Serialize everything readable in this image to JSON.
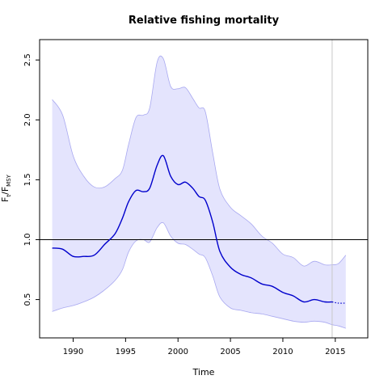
{
  "chart_data": {
    "type": "line",
    "title": "Relative fishing mortality",
    "xlabel": "Time",
    "ylabel": {
      "main": "F",
      "sub1": "t",
      "slash": "/F",
      "sub2": "MSY"
    },
    "xlim": [
      1986.8,
      2018.1
    ],
    "ylim": [
      0.18,
      2.67
    ],
    "xticks": [
      {
        "value": 1990,
        "label": "1990"
      },
      {
        "value": 1995,
        "label": "1995"
      },
      {
        "value": 2000,
        "label": "2000"
      },
      {
        "value": 2005,
        "label": "2005"
      },
      {
        "value": 2010,
        "label": "2010"
      },
      {
        "value": 2015,
        "label": "2015"
      }
    ],
    "yticks": [
      {
        "value": 0.5,
        "label": "0.5"
      },
      {
        "value": 1.0,
        "label": "1.0"
      },
      {
        "value": 1.5,
        "label": "1.5"
      },
      {
        "value": 2.0,
        "label": "2.0"
      },
      {
        "value": 2.5,
        "label": "2.5"
      }
    ],
    "reference_line": 1.0,
    "vertical_line": 2014.7,
    "colors": {
      "line": "#0000cc",
      "band_fill": "#e4e4fd",
      "band_edge": "#a8a8f0",
      "vline": "#c8c8c8",
      "ref": "#000000"
    },
    "series": {
      "x": [
        1988.0,
        1989.0,
        1990.0,
        1991.0,
        1992.0,
        1993.0,
        1994.0,
        1994.7,
        1995.3,
        1996.0,
        1996.7,
        1997.3,
        1998.0,
        1998.6,
        1999.3,
        2000.0,
        2000.7,
        2001.4,
        2002.0,
        2002.6,
        2003.3,
        2004.0,
        2005.0,
        2006.0,
        2007.0,
        2008.0,
        2009.0,
        2010.0,
        2011.0,
        2012.0,
        2013.0,
        2014.0,
        2014.7
      ],
      "median": [
        0.93,
        0.92,
        0.86,
        0.86,
        0.87,
        0.96,
        1.05,
        1.18,
        1.32,
        1.41,
        1.4,
        1.43,
        1.62,
        1.7,
        1.53,
        1.46,
        1.48,
        1.43,
        1.36,
        1.33,
        1.15,
        0.9,
        0.77,
        0.71,
        0.68,
        0.63,
        0.61,
        0.56,
        0.53,
        0.48,
        0.5,
        0.48,
        0.48
      ],
      "lower": [
        0.4,
        0.43,
        0.45,
        0.48,
        0.52,
        0.58,
        0.66,
        0.75,
        0.9,
        0.99,
        1.0,
        0.98,
        1.1,
        1.14,
        1.03,
        0.97,
        0.96,
        0.92,
        0.88,
        0.85,
        0.7,
        0.52,
        0.43,
        0.41,
        0.39,
        0.38,
        0.36,
        0.34,
        0.32,
        0.31,
        0.32,
        0.31,
        0.29
      ],
      "upper": [
        2.17,
        2.04,
        1.7,
        1.53,
        1.44,
        1.44,
        1.51,
        1.58,
        1.8,
        2.02,
        2.04,
        2.1,
        2.48,
        2.51,
        2.28,
        2.26,
        2.27,
        2.18,
        2.1,
        2.07,
        1.73,
        1.42,
        1.27,
        1.2,
        1.13,
        1.03,
        0.97,
        0.88,
        0.85,
        0.78,
        0.82,
        0.79,
        0.79
      ]
    },
    "projection": {
      "x": [
        2014.7,
        2015.3,
        2016.0
      ],
      "median": [
        0.48,
        0.47,
        0.47
      ],
      "lower": [
        0.29,
        0.28,
        0.26
      ],
      "upper": [
        0.79,
        0.8,
        0.87
      ]
    }
  }
}
